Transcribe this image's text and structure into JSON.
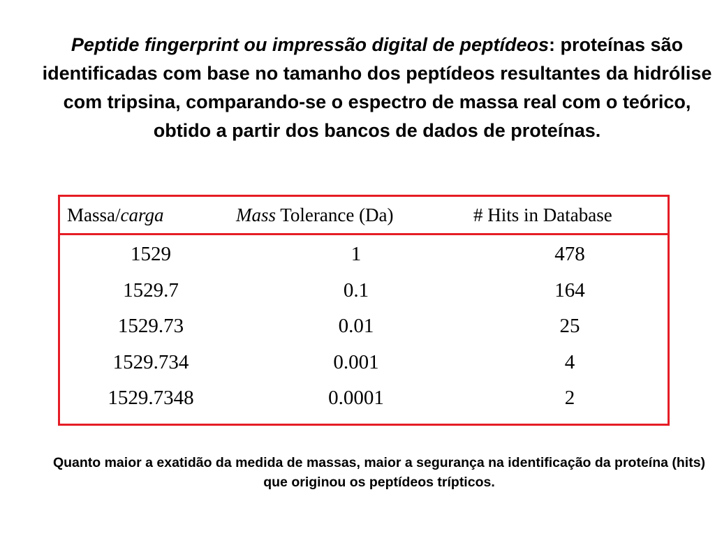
{
  "intro": {
    "term": "Peptide fingerprint ou impressão digital de peptídeos",
    "rest": ": proteínas são identificadas com base no tamanho dos peptídeos resultantes da hidrólise com tripsina, comparando-se o espectro de massa real com o teórico, obtido a partir dos bancos de dados de proteínas."
  },
  "table": {
    "headers": {
      "col1_prefix": "Massa/",
      "col1_italic": "carga",
      "col2_italic": "Mass",
      "col2_rest": " Tolerance (Da)",
      "col3": "# Hits in Database"
    },
    "rows": [
      {
        "massa": "1529",
        "tolerance": "1",
        "hits": "478"
      },
      {
        "massa": "1529.7",
        "tolerance": "0.1",
        "hits": "164"
      },
      {
        "massa": "1529.73",
        "tolerance": "0.01",
        "hits": "25"
      },
      {
        "massa": "1529.734",
        "tolerance": "0.001",
        "hits": "4"
      },
      {
        "massa": "1529.7348",
        "tolerance": "0.0001",
        "hits": "2"
      }
    ],
    "border_color": "#e51d25"
  },
  "footer": {
    "text": "Quanto maior a exatidão da medida de massas, maior a segurança na identificação da proteína (hits) que originou os peptídeos trípticos."
  }
}
